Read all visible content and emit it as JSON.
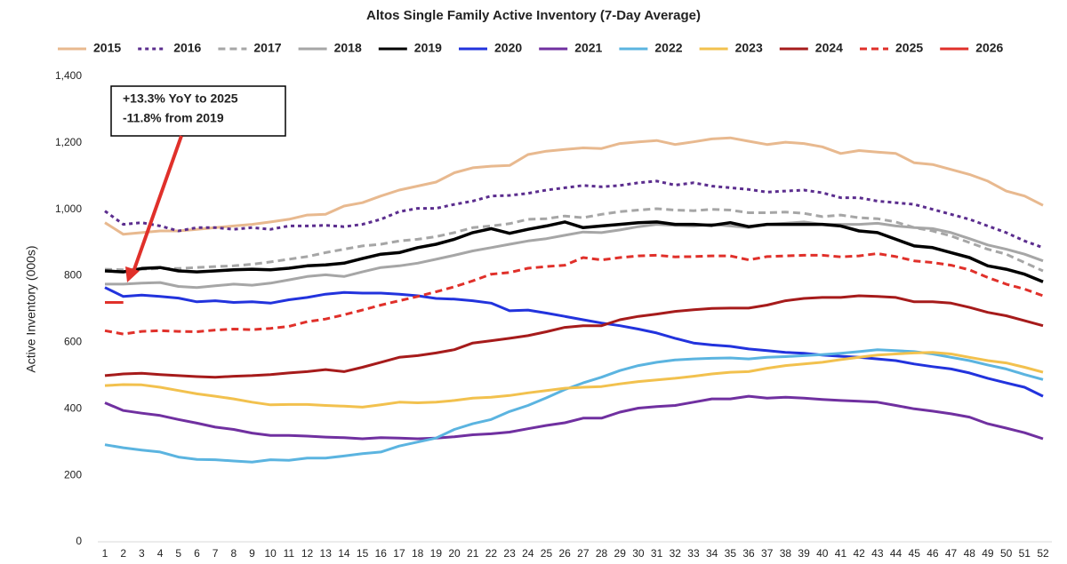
{
  "chart_data": {
    "type": "line",
    "title": "Altos Single Family Active Inventory (7-Day Average)",
    "y_label": "Active Inventory (000s)",
    "annotation": [
      "+13.3% YoY to 2025",
      "-11.8% from 2019"
    ],
    "x": [
      1,
      2,
      3,
      4,
      5,
      6,
      7,
      8,
      9,
      10,
      11,
      12,
      13,
      14,
      15,
      16,
      17,
      18,
      19,
      20,
      21,
      22,
      23,
      24,
      25,
      26,
      27,
      28,
      29,
      30,
      31,
      32,
      33,
      34,
      35,
      36,
      37,
      38,
      39,
      40,
      41,
      42,
      43,
      44,
      45,
      46,
      47,
      48,
      49,
      50,
      51,
      52
    ],
    "xlim": [
      1,
      52
    ],
    "xticks": [
      1,
      2,
      3,
      4,
      5,
      6,
      7,
      8,
      9,
      10,
      11,
      12,
      13,
      14,
      15,
      16,
      17,
      18,
      19,
      20,
      21,
      22,
      23,
      24,
      25,
      26,
      27,
      28,
      29,
      30,
      31,
      32,
      33,
      34,
      35,
      36,
      37,
      38,
      39,
      40,
      41,
      42,
      43,
      44,
      45,
      46,
      47,
      48,
      49,
      50,
      51,
      52
    ],
    "ylim": [
      0,
      1400
    ],
    "yticks": [
      0,
      200,
      400,
      600,
      800,
      {
        "value": 1000,
        "label": "1,000"
      },
      {
        "value": 1200,
        "label": "1,200"
      },
      {
        "value": 1400,
        "label": "1,400"
      }
    ],
    "grid": false,
    "legend": "top",
    "series": [
      {
        "name": "2015",
        "color": "#e8b98f",
        "dash": "solid",
        "values": [
          960,
          925,
          930,
          935,
          935,
          940,
          945,
          950,
          955,
          962,
          970,
          983,
          985,
          1010,
          1020,
          1040,
          1058,
          1070,
          1082,
          1110,
          1125,
          1130,
          1132,
          1165,
          1175,
          1180,
          1185,
          1183,
          1198,
          1203,
          1207,
          1195,
          1203,
          1212,
          1215,
          1205,
          1195,
          1202,
          1198,
          1188,
          1168,
          1177,
          1172,
          1168,
          1140,
          1135,
          1120,
          1105,
          1085,
          1055,
          1040,
          1012
        ]
      },
      {
        "name": "2016",
        "color": "#5b2d8e",
        "dash": "dotted",
        "values": [
          995,
          955,
          960,
          950,
          935,
          945,
          945,
          940,
          945,
          940,
          950,
          950,
          952,
          948,
          955,
          970,
          993,
          1003,
          1003,
          1015,
          1025,
          1040,
          1042,
          1048,
          1058,
          1065,
          1072,
          1068,
          1072,
          1080,
          1085,
          1073,
          1080,
          1070,
          1065,
          1060,
          1052,
          1055,
          1058,
          1050,
          1035,
          1035,
          1025,
          1020,
          1015,
          1000,
          985,
          970,
          950,
          930,
          905,
          885
        ]
      },
      {
        "name": "2017",
        "color": "#a6a6a6",
        "dash": "dashed",
        "values": [
          820,
          818,
          820,
          822,
          822,
          825,
          828,
          830,
          835,
          842,
          850,
          858,
          870,
          880,
          890,
          895,
          905,
          910,
          918,
          930,
          945,
          950,
          957,
          970,
          972,
          980,
          975,
          985,
          993,
          998,
          1002,
          998,
          996,
          1000,
          998,
          990,
          990,
          992,
          988,
          978,
          983,
          975,
          972,
          962,
          945,
          935,
          920,
          900,
          880,
          865,
          840,
          815
        ]
      },
      {
        "name": "2018",
        "color": "#a6a6a6",
        "dash": "solid",
        "values": [
          775,
          775,
          778,
          780,
          768,
          765,
          770,
          775,
          772,
          778,
          788,
          798,
          803,
          798,
          812,
          825,
          830,
          838,
          850,
          862,
          875,
          885,
          895,
          905,
          912,
          922,
          932,
          930,
          938,
          948,
          955,
          952,
          950,
          955,
          950,
          945,
          955,
          958,
          962,
          955,
          955,
          955,
          958,
          950,
          945,
          942,
          930,
          912,
          893,
          880,
          865,
          845
        ]
      },
      {
        "name": "2019",
        "color": "#000000",
        "dash": "solid",
        "values": [
          815,
          812,
          822,
          825,
          815,
          812,
          815,
          818,
          820,
          818,
          823,
          830,
          833,
          838,
          852,
          865,
          870,
          885,
          895,
          910,
          930,
          942,
          928,
          940,
          950,
          962,
          945,
          950,
          955,
          960,
          962,
          955,
          955,
          952,
          960,
          948,
          955,
          955,
          955,
          955,
          950,
          935,
          930,
          910,
          890,
          885,
          870,
          855,
          830,
          820,
          805,
          782
        ]
      },
      {
        "name": "2020",
        "color": "#2233dd",
        "dash": "solid",
        "values": [
          765,
          738,
          742,
          738,
          733,
          722,
          725,
          720,
          722,
          718,
          728,
          735,
          745,
          750,
          748,
          748,
          745,
          740,
          732,
          730,
          725,
          718,
          695,
          697,
          688,
          678,
          668,
          658,
          650,
          640,
          628,
          612,
          598,
          592,
          588,
          580,
          575,
          570,
          567,
          562,
          558,
          555,
          550,
          545,
          535,
          527,
          520,
          508,
          492,
          478,
          465,
          438
        ]
      },
      {
        "name": "2021",
        "color": "#7030a0",
        "dash": "solid",
        "values": [
          418,
          395,
          387,
          380,
          368,
          357,
          345,
          338,
          327,
          320,
          320,
          318,
          315,
          313,
          310,
          313,
          312,
          310,
          312,
          316,
          322,
          325,
          330,
          340,
          350,
          358,
          372,
          372,
          390,
          402,
          407,
          410,
          420,
          430,
          430,
          438,
          432,
          435,
          432,
          428,
          425,
          423,
          420,
          410,
          400,
          393,
          385,
          375,
          355,
          342,
          328,
          310
        ]
      },
      {
        "name": "2022",
        "color": "#5bb4e0",
        "dash": "solid",
        "values": [
          292,
          283,
          276,
          270,
          255,
          248,
          247,
          243,
          240,
          247,
          245,
          252,
          252,
          258,
          265,
          270,
          288,
          300,
          312,
          338,
          355,
          368,
          392,
          410,
          433,
          458,
          478,
          495,
          515,
          530,
          540,
          547,
          550,
          552,
          553,
          550,
          555,
          557,
          560,
          563,
          567,
          572,
          578,
          575,
          572,
          565,
          555,
          545,
          532,
          520,
          503,
          488
        ]
      },
      {
        "name": "2023",
        "color": "#f2c14e",
        "dash": "solid",
        "values": [
          470,
          473,
          472,
          465,
          455,
          445,
          438,
          430,
          420,
          412,
          413,
          413,
          410,
          408,
          405,
          412,
          420,
          418,
          420,
          425,
          432,
          435,
          440,
          448,
          455,
          462,
          465,
          467,
          475,
          482,
          487,
          492,
          498,
          505,
          510,
          512,
          522,
          530,
          535,
          540,
          548,
          555,
          562,
          565,
          568,
          570,
          565,
          555,
          545,
          538,
          525,
          510
        ]
      },
      {
        "name": "2024",
        "color": "#a61b1b",
        "dash": "solid",
        "values": [
          500,
          505,
          507,
          503,
          500,
          497,
          495,
          498,
          500,
          503,
          508,
          512,
          518,
          512,
          525,
          540,
          555,
          560,
          568,
          578,
          598,
          605,
          612,
          620,
          632,
          645,
          650,
          650,
          668,
          678,
          685,
          693,
          698,
          702,
          703,
          703,
          712,
          725,
          732,
          735,
          735,
          740,
          738,
          735,
          722,
          722,
          718,
          705,
          690,
          680,
          665,
          650
        ]
      },
      {
        "name": "2025",
        "color": "#e0302a",
        "dash": "dashed",
        "values": [
          635,
          625,
          633,
          635,
          633,
          632,
          637,
          640,
          638,
          642,
          648,
          662,
          670,
          683,
          697,
          712,
          725,
          738,
          752,
          767,
          785,
          805,
          810,
          823,
          828,
          832,
          855,
          848,
          855,
          860,
          862,
          857,
          858,
          860,
          860,
          848,
          858,
          860,
          862,
          862,
          857,
          860,
          867,
          858,
          845,
          840,
          832,
          818,
          795,
          775,
          760,
          740
        ]
      },
      {
        "name": "2026",
        "color": "#e0302a",
        "dash": "solid",
        "values": [
          720,
          720,
          null,
          null,
          null,
          null,
          null,
          null,
          null,
          null,
          null,
          null,
          null,
          null,
          null,
          null,
          null,
          null,
          null,
          null,
          null,
          null,
          null,
          null,
          null,
          null,
          null,
          null,
          null,
          null,
          null,
          null,
          null,
          null,
          null,
          null,
          null,
          null,
          null,
          null,
          null,
          null,
          null,
          null,
          null,
          null,
          null,
          null,
          null,
          null,
          null,
          null
        ]
      }
    ]
  }
}
